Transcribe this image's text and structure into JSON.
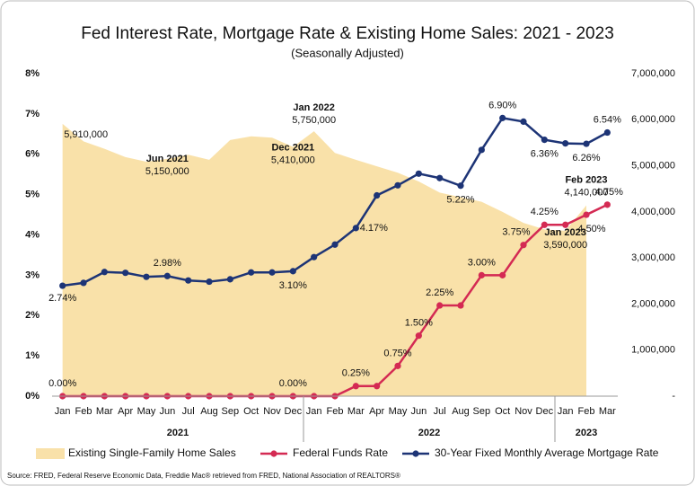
{
  "chart_data": {
    "type": "combo",
    "title": "Fed Interest Rate, Mortgage Rate & Existing Home Sales: 2021 - 2023",
    "subtitle": "(Seasonally Adjusted)",
    "categories": [
      "Jan",
      "Feb",
      "Mar",
      "Apr",
      "May",
      "Jun",
      "Jul",
      "Aug",
      "Sep",
      "Oct",
      "Nov",
      "Dec",
      "Jan",
      "Feb",
      "Mar",
      "Apr",
      "May",
      "Jun",
      "Jul",
      "Aug",
      "Sep",
      "Oct",
      "Nov",
      "Dec",
      "Jan",
      "Feb",
      "Mar"
    ],
    "year_labels": [
      "2021",
      "2022",
      "2023"
    ],
    "ylim": [
      0,
      8
    ],
    "yticks": [
      {
        "value": 0,
        "label": "0%"
      },
      {
        "value": 1,
        "label": "1%"
      },
      {
        "value": 2,
        "label": "2%"
      },
      {
        "value": 3,
        "label": "3%"
      },
      {
        "value": 4,
        "label": "4%"
      },
      {
        "value": 5,
        "label": "5%"
      },
      {
        "value": 6,
        "label": "6%"
      },
      {
        "value": 7,
        "label": "7%"
      },
      {
        "value": 8,
        "label": "8%"
      }
    ],
    "y2lim": [
      0,
      7000000
    ],
    "y2ticks": [
      {
        "value": 0,
        "label": "-"
      },
      {
        "value": 1000000,
        "label": "1,000,000"
      },
      {
        "value": 2000000,
        "label": "2,000,000"
      },
      {
        "value": 3000000,
        "label": "3,000,000"
      },
      {
        "value": 4000000,
        "label": "4,000,000"
      },
      {
        "value": 5000000,
        "label": "5,000,000"
      },
      {
        "value": 6000000,
        "label": "6,000,000"
      },
      {
        "value": 7000000,
        "label": "7,000,000"
      }
    ],
    "grid": false,
    "legend": "bottom",
    "series": [
      {
        "name": "Existing Single-Family Home Sales",
        "type": "area",
        "axis": "y2",
        "color": "#f9e1a9",
        "values": [
          5910000,
          5530000,
          5370000,
          5190000,
          5090000,
          5150000,
          5240000,
          5130000,
          5560000,
          5640000,
          5610000,
          5410000,
          5750000,
          5280000,
          5130000,
          4990000,
          4850000,
          4660000,
          4420000,
          4320000,
          4220000,
          4000000,
          3760000,
          3620000,
          3590000,
          4140000,
          null
        ],
        "value_labels": [
          "5,910,000",
          null,
          null,
          null,
          null,
          "5,150,000",
          null,
          null,
          null,
          null,
          null,
          "5,410,000",
          "5,750,000",
          null,
          null,
          null,
          null,
          null,
          null,
          null,
          null,
          null,
          null,
          null,
          "3,590,000",
          "4,140,000",
          null
        ],
        "value_titles": [
          null,
          null,
          null,
          null,
          null,
          "Jun 2021",
          null,
          null,
          null,
          null,
          null,
          "Dec 2021",
          "Jan 2022",
          null,
          null,
          null,
          null,
          null,
          null,
          null,
          null,
          null,
          null,
          null,
          "Jan 2023",
          "Feb 2023",
          null
        ]
      },
      {
        "name": "Federal Funds Rate",
        "type": "line",
        "color": "#d42a53",
        "values": [
          0,
          0,
          0,
          0,
          0,
          0,
          0,
          0,
          0,
          0,
          0,
          0,
          0,
          0,
          0.25,
          0.25,
          0.75,
          1.5,
          2.25,
          2.25,
          3,
          3,
          3.75,
          4.25,
          4.25,
          4.5,
          4.75
        ],
        "value_labels": [
          "0.00%",
          null,
          null,
          null,
          null,
          null,
          null,
          null,
          null,
          null,
          null,
          "0.00%",
          null,
          null,
          "0.25%",
          null,
          "0.75%",
          "1.50%",
          "2.25%",
          null,
          "3.00%",
          null,
          "3.75%",
          "4.25%",
          null,
          "4.50%",
          "4.75%"
        ]
      },
      {
        "name": "30-Year Fixed Monthly Average Mortgage Rate",
        "type": "line",
        "color": "#1d3476",
        "values": [
          2.74,
          2.81,
          3.08,
          3.06,
          2.96,
          2.98,
          2.87,
          2.84,
          2.9,
          3.07,
          3.07,
          3.1,
          3.45,
          3.76,
          4.17,
          4.98,
          5.23,
          5.52,
          5.41,
          5.22,
          6.11,
          6.9,
          6.81,
          6.36,
          6.27,
          6.26,
          6.54
        ],
        "value_labels": [
          "2.74%",
          null,
          null,
          null,
          null,
          "2.98%",
          null,
          null,
          null,
          null,
          null,
          "3.10%",
          null,
          null,
          "4.17%",
          null,
          null,
          null,
          null,
          "5.22%",
          null,
          "6.90%",
          null,
          "6.36%",
          null,
          "6.26%",
          "6.54%"
        ]
      }
    ],
    "source": "Source: FRED, Federal Reserve Economic Data, Freddie Mac® retrieved from FRED, National Association of REALTORS®"
  }
}
